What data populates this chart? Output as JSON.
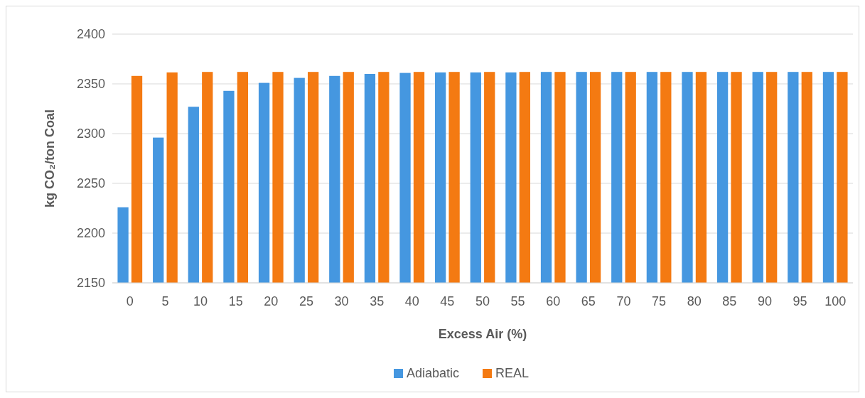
{
  "chart_data": {
    "type": "bar",
    "xlabel": "Excess Air (%)",
    "ylabel": "kg CO₂/ton Coal",
    "categories": [
      "0",
      "5",
      "10",
      "15",
      "20",
      "25",
      "30",
      "35",
      "40",
      "45",
      "50",
      "55",
      "60",
      "65",
      "70",
      "75",
      "80",
      "85",
      "90",
      "95",
      "100"
    ],
    "series": [
      {
        "name": "Adiabatic",
        "color": "#4597e0",
        "values": [
          2226,
          2296,
          2327,
          2343,
          2351,
          2356,
          2358,
          2360,
          2361,
          2361.5,
          2361.5,
          2361.5,
          2362,
          2362,
          2362,
          2362,
          2362,
          2362,
          2362,
          2362,
          2362
        ]
      },
      {
        "name": "REAL",
        "color": "#f47a12",
        "values": [
          2358,
          2361.5,
          2362,
          2362,
          2362,
          2362,
          2362,
          2362,
          2362,
          2362,
          2362,
          2362,
          2362,
          2362,
          2362,
          2362,
          2362,
          2362,
          2362,
          2362,
          2362
        ]
      }
    ],
    "ylim": [
      2150,
      2400
    ],
    "yticks": [
      2150,
      2200,
      2250,
      2300,
      2350,
      2400
    ],
    "grid": "y",
    "legend": "bottom"
  }
}
